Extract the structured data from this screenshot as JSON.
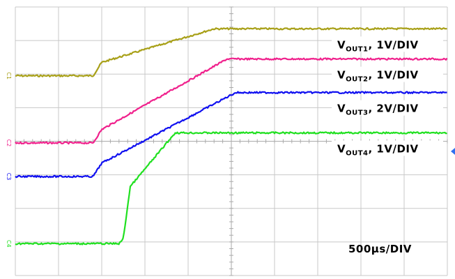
{
  "chart_data": {
    "type": "line",
    "title": "",
    "xlabel": "",
    "ylabel": "",
    "timebase_label": "500µs/DIV",
    "x_unit": "µs",
    "x_divisions": 10,
    "y_divisions": 8,
    "xlim": [
      0,
      5000
    ],
    "series": [
      {
        "name": "VOUT1",
        "label_main": "V",
        "label_sub": "OUT1",
        "label_tail": ", 1V/DIV",
        "marker": "C1",
        "color": "#a8a018",
        "base_div": 5.95,
        "points": [
          [
            0,
            0
          ],
          [
            900,
            0
          ],
          [
            1000,
            0.4
          ],
          [
            2300,
            1.4
          ],
          [
            2500,
            1.4
          ],
          [
            5000,
            1.4
          ]
        ]
      },
      {
        "name": "VOUT2",
        "label_main": "V",
        "label_sub": "OUT2",
        "label_tail": ", 1V/DIV",
        "marker": "C2",
        "color": "#f0208c",
        "base_div": 3.95,
        "points": [
          [
            0,
            0
          ],
          [
            900,
            0
          ],
          [
            1000,
            0.4
          ],
          [
            2450,
            2.5
          ],
          [
            2600,
            2.5
          ],
          [
            5000,
            2.5
          ]
        ]
      },
      {
        "name": "VOUT3",
        "label_main": "V",
        "label_sub": "OUT3",
        "label_tail": ", 2V/DIV",
        "marker": "C3",
        "color": "#1010f0",
        "base_div": 2.95,
        "points": [
          [
            0,
            0
          ],
          [
            900,
            0
          ],
          [
            1000,
            0.4
          ],
          [
            2550,
            2.5
          ],
          [
            2700,
            2.5
          ],
          [
            5000,
            2.5
          ]
        ]
      },
      {
        "name": "VOUT4",
        "label_main": "V",
        "label_sub": "OUT4",
        "label_tail": ", 1V/DIV",
        "marker": "C4",
        "color": "#20e020",
        "base_div": 0.95,
        "points": [
          [
            0,
            0
          ],
          [
            1200,
            0
          ],
          [
            1250,
            0.15
          ],
          [
            1330,
            1.7
          ],
          [
            1850,
            3.3
          ],
          [
            1900,
            3.3
          ],
          [
            5000,
            3.3
          ]
        ]
      }
    ]
  }
}
